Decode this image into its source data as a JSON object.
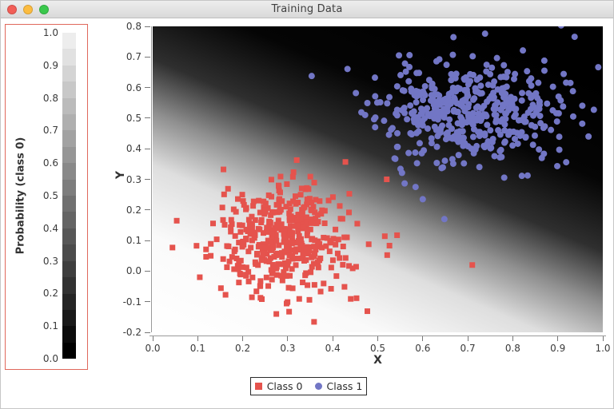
{
  "window": {
    "title": "Training Data",
    "traffic_lights": {
      "close": "#f25e57",
      "minimize": "#fcbc40",
      "zoom": "#3ac84c"
    }
  },
  "colorbar": {
    "label": "Probability (class 0)",
    "ticks": [
      "1.0",
      "0.9",
      "0.8",
      "0.7",
      "0.6",
      "0.5",
      "0.4",
      "0.3",
      "0.2",
      "0.1",
      "0.0"
    ],
    "steps": 20,
    "light_color": "#ededed",
    "dark_color": "#000000",
    "frame_color": "#e0685c"
  },
  "chart_data": {
    "type": "scatter",
    "title": "Training Data",
    "xlabel": "X",
    "ylabel": "Y",
    "xlim": [
      0.0,
      1.0
    ],
    "ylim": [
      -0.2,
      0.8
    ],
    "xticks": [
      "0.0",
      "0.1",
      "0.2",
      "0.3",
      "0.4",
      "0.5",
      "0.6",
      "0.7",
      "0.8",
      "0.9",
      "1.0"
    ],
    "yticks": [
      "0.8",
      "0.7",
      "0.6",
      "0.5",
      "0.4",
      "0.3",
      "0.2",
      "0.1",
      "0.0",
      "-0.1",
      "-0.2"
    ],
    "grid": false,
    "legend_position": "bottom",
    "background": {
      "type": "probability-shading",
      "description": "grayscale P(class 0): white ~1 lower-left, black ~0 upper-right",
      "decision_boundary": {
        "x0": 0.0,
        "y0": 0.52,
        "x1": 1.0,
        "y1": -0.11
      },
      "white": "#ffffff",
      "black": "#000000"
    },
    "series": [
      {
        "name": "Class 0",
        "marker": "square",
        "marker_px": 7,
        "color": "#e5534d",
        "n": 430,
        "center": [
          0.29,
          0.11
        ],
        "std": [
          0.085,
          0.09
        ],
        "seed": 3,
        "outliers": [
          [
            0.71,
            0.02
          ],
          [
            0.52,
            0.3
          ]
        ]
      },
      {
        "name": "Class 1",
        "marker": "circle",
        "marker_px": 8,
        "color": "#7276c5",
        "n": 450,
        "center": [
          0.7,
          0.52
        ],
        "std": [
          0.1,
          0.082
        ],
        "seed": 11,
        "outliers": [
          [
            0.648,
            0.17
          ],
          [
            0.584,
            0.275
          ],
          [
            0.6,
            0.235
          ]
        ]
      }
    ]
  }
}
